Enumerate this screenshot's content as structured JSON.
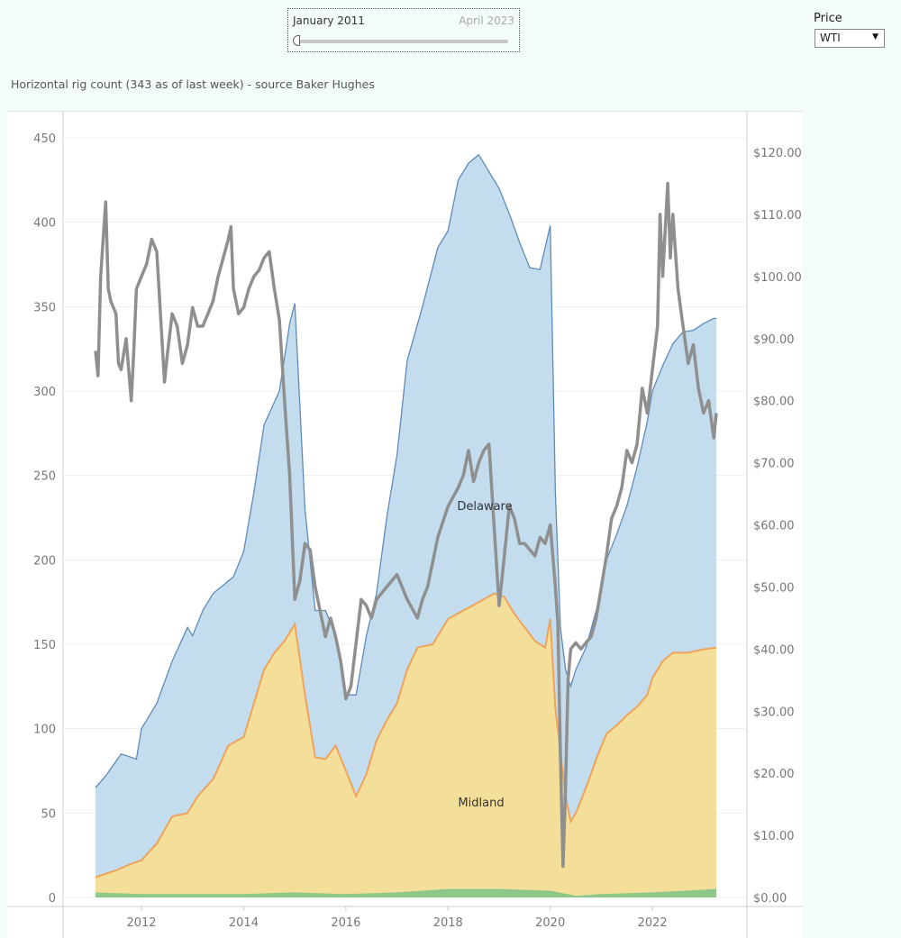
{
  "slider": {
    "start_label": "January 2011",
    "end_label": "April 2023"
  },
  "price_filter": {
    "label": "Price",
    "selected": "WTI"
  },
  "chart_title": "Horizontal rig count (343 as of last week) - source Baker Hughes",
  "colors": {
    "delaware_fill": "#c3ddef",
    "delaware_line": "#5f8bb6",
    "midland_fill": "#f3de9a",
    "midland_line": "#f0a35a",
    "other_fill": "#8dc78a",
    "price_line": "#8f8f8f"
  },
  "chart_data": {
    "type": "area",
    "title": "Horizontal rig count (343 as of last week) - source Baker Hughes",
    "x_ticks": [
      "2012",
      "2014",
      "2016",
      "2018",
      "2020",
      "2022"
    ],
    "x_range": [
      2011.1,
      2023.25
    ],
    "y_left": {
      "ticks": [
        "0",
        "50",
        "100",
        "150",
        "200",
        "250",
        "300",
        "350",
        "400",
        "450"
      ],
      "range": [
        0,
        450
      ]
    },
    "y_right": {
      "ticks": [
        "$0.00",
        "$10.00",
        "$20.00",
        "$30.00",
        "$40.00",
        "$50.00",
        "$60.00",
        "$70.00",
        "$80.00",
        "$90.00",
        "$100.00",
        "$110.00",
        "$120.00"
      ],
      "range": [
        0,
        120
      ]
    },
    "annotations": [
      "Delaware",
      "Midland"
    ],
    "series": [
      {
        "name": "Delaware",
        "kind": "stacked-total",
        "axis": "left",
        "x": [
          2011.1,
          2011.3,
          2011.6,
          2011.9,
          2012.0,
          2012.3,
          2012.6,
          2012.9,
          2013.0,
          2013.2,
          2013.4,
          2013.8,
          2014.0,
          2014.2,
          2014.4,
          2014.7,
          2014.9,
          2015.0,
          2015.2,
          2015.4,
          2015.6,
          2015.8,
          2016.0,
          2016.2,
          2016.4,
          2016.6,
          2016.8,
          2017.0,
          2017.2,
          2017.5,
          2017.8,
          2018.0,
          2018.2,
          2018.4,
          2018.6,
          2018.8,
          2019.0,
          2019.2,
          2019.4,
          2019.6,
          2019.8,
          2020.0,
          2020.1,
          2020.2,
          2020.3,
          2020.4,
          2020.5,
          2020.7,
          2020.9,
          2021.1,
          2021.3,
          2021.5,
          2021.7,
          2021.9,
          2022.0,
          2022.2,
          2022.4,
          2022.6,
          2022.8,
          2023.0,
          2023.2,
          2023.25
        ],
        "values": [
          65,
          72,
          85,
          82,
          100,
          115,
          140,
          160,
          155,
          170,
          180,
          190,
          205,
          240,
          280,
          300,
          340,
          352,
          230,
          170,
          170,
          155,
          120,
          120,
          155,
          180,
          225,
          262,
          318,
          350,
          385,
          395,
          425,
          435,
          440,
          430,
          420,
          405,
          388,
          373,
          372,
          398,
          240,
          160,
          135,
          125,
          135,
          148,
          170,
          200,
          215,
          232,
          255,
          282,
          300,
          315,
          328,
          335,
          336,
          340,
          343,
          343
        ]
      },
      {
        "name": "Midland",
        "kind": "stacked-total",
        "axis": "left",
        "x": [
          2011.1,
          2011.5,
          2011.8,
          2012.0,
          2012.3,
          2012.6,
          2012.9,
          2013.1,
          2013.4,
          2013.7,
          2014.0,
          2014.2,
          2014.4,
          2014.6,
          2014.8,
          2015.0,
          2015.2,
          2015.4,
          2015.6,
          2015.8,
          2016.0,
          2016.2,
          2016.4,
          2016.6,
          2016.8,
          2017.0,
          2017.2,
          2017.4,
          2017.7,
          2018.0,
          2018.3,
          2018.6,
          2018.9,
          2019.1,
          2019.3,
          2019.5,
          2019.7,
          2019.9,
          2020.0,
          2020.1,
          2020.3,
          2020.4,
          2020.5,
          2020.7,
          2020.9,
          2021.1,
          2021.3,
          2021.5,
          2021.7,
          2021.9,
          2022.0,
          2022.2,
          2022.4,
          2022.7,
          2023.0,
          2023.25
        ],
        "values": [
          12,
          16,
          20,
          22,
          32,
          48,
          50,
          60,
          70,
          90,
          95,
          115,
          135,
          145,
          152,
          162,
          120,
          83,
          82,
          90,
          75,
          60,
          73,
          93,
          105,
          115,
          135,
          148,
          150,
          165,
          170,
          175,
          180,
          178,
          168,
          160,
          152,
          148,
          165,
          112,
          60,
          45,
          50,
          65,
          82,
          97,
          102,
          108,
          113,
          120,
          130,
          140,
          145,
          145,
          147,
          148
        ]
      },
      {
        "name": "Other",
        "kind": "stacked-total",
        "axis": "left",
        "x": [
          2011.1,
          2012.0,
          2013.0,
          2014.0,
          2015.0,
          2016.0,
          2017.0,
          2018.0,
          2019.0,
          2020.0,
          2020.5,
          2021.0,
          2022.0,
          2023.25
        ],
        "values": [
          3,
          2,
          2,
          2,
          3,
          2,
          3,
          5,
          5,
          4,
          1,
          2,
          3,
          5
        ]
      },
      {
        "name": "WTI",
        "kind": "line",
        "axis": "right",
        "x": [
          2011.1,
          2011.15,
          2011.2,
          2011.3,
          2011.35,
          2011.4,
          2011.5,
          2011.55,
          2011.6,
          2011.7,
          2011.8,
          2011.85,
          2011.9,
          2012.0,
          2012.1,
          2012.2,
          2012.3,
          2012.4,
          2012.45,
          2012.5,
          2012.6,
          2012.7,
          2012.8,
          2012.9,
          2013.0,
          2013.1,
          2013.2,
          2013.3,
          2013.4,
          2013.5,
          2013.6,
          2013.7,
          2013.75,
          2013.8,
          2013.9,
          2014.0,
          2014.1,
          2014.2,
          2014.3,
          2014.4,
          2014.5,
          2014.6,
          2014.7,
          2014.8,
          2014.9,
          2015.0,
          2015.1,
          2015.2,
          2015.3,
          2015.4,
          2015.5,
          2015.6,
          2015.7,
          2015.8,
          2015.9,
          2016.0,
          2016.1,
          2016.2,
          2016.3,
          2016.4,
          2016.5,
          2016.6,
          2016.7,
          2016.8,
          2017.0,
          2017.2,
          2017.4,
          2017.5,
          2017.6,
          2017.8,
          2018.0,
          2018.2,
          2018.3,
          2018.4,
          2018.5,
          2018.6,
          2018.7,
          2018.8,
          2018.9,
          2019.0,
          2019.1,
          2019.2,
          2019.3,
          2019.4,
          2019.5,
          2019.6,
          2019.7,
          2019.8,
          2019.9,
          2020.0,
          2020.1,
          2020.15,
          2020.2,
          2020.25,
          2020.3,
          2020.35,
          2020.4,
          2020.5,
          2020.6,
          2020.7,
          2020.8,
          2020.9,
          2021.0,
          2021.1,
          2021.2,
          2021.3,
          2021.4,
          2021.5,
          2021.6,
          2021.7,
          2021.8,
          2021.9,
          2022.0,
          2022.1,
          2022.15,
          2022.2,
          2022.3,
          2022.35,
          2022.4,
          2022.5,
          2022.6,
          2022.7,
          2022.8,
          2022.9,
          2023.0,
          2023.1,
          2023.2,
          2023.25
        ],
        "values": [
          88,
          84,
          100,
          112,
          98,
          96,
          94,
          86,
          85,
          90,
          80,
          88,
          98,
          100,
          102,
          106,
          104,
          90,
          83,
          87,
          94,
          92,
          86,
          89,
          95,
          92,
          92,
          94,
          96,
          100,
          103,
          106,
          108,
          98,
          94,
          95,
          98,
          100,
          101,
          103,
          104,
          98,
          93,
          80,
          68,
          48,
          51,
          57,
          56,
          50,
          46,
          42,
          45,
          42,
          38,
          32,
          34,
          41,
          48,
          47,
          45,
          48,
          49,
          50,
          52,
          48,
          45,
          48,
          50,
          58,
          63,
          66,
          68,
          72,
          67,
          70,
          72,
          73,
          60,
          47,
          55,
          63,
          61,
          57,
          57,
          56,
          55,
          58,
          57,
          60,
          50,
          44,
          23,
          5,
          18,
          35,
          40,
          41,
          40,
          41,
          42,
          45,
          50,
          55,
          61,
          63,
          66,
          72,
          70,
          73,
          82,
          78,
          85,
          92,
          110,
          100,
          115,
          103,
          110,
          98,
          92,
          86,
          89,
          82,
          78,
          80,
          74,
          78
        ]
      }
    ]
  }
}
